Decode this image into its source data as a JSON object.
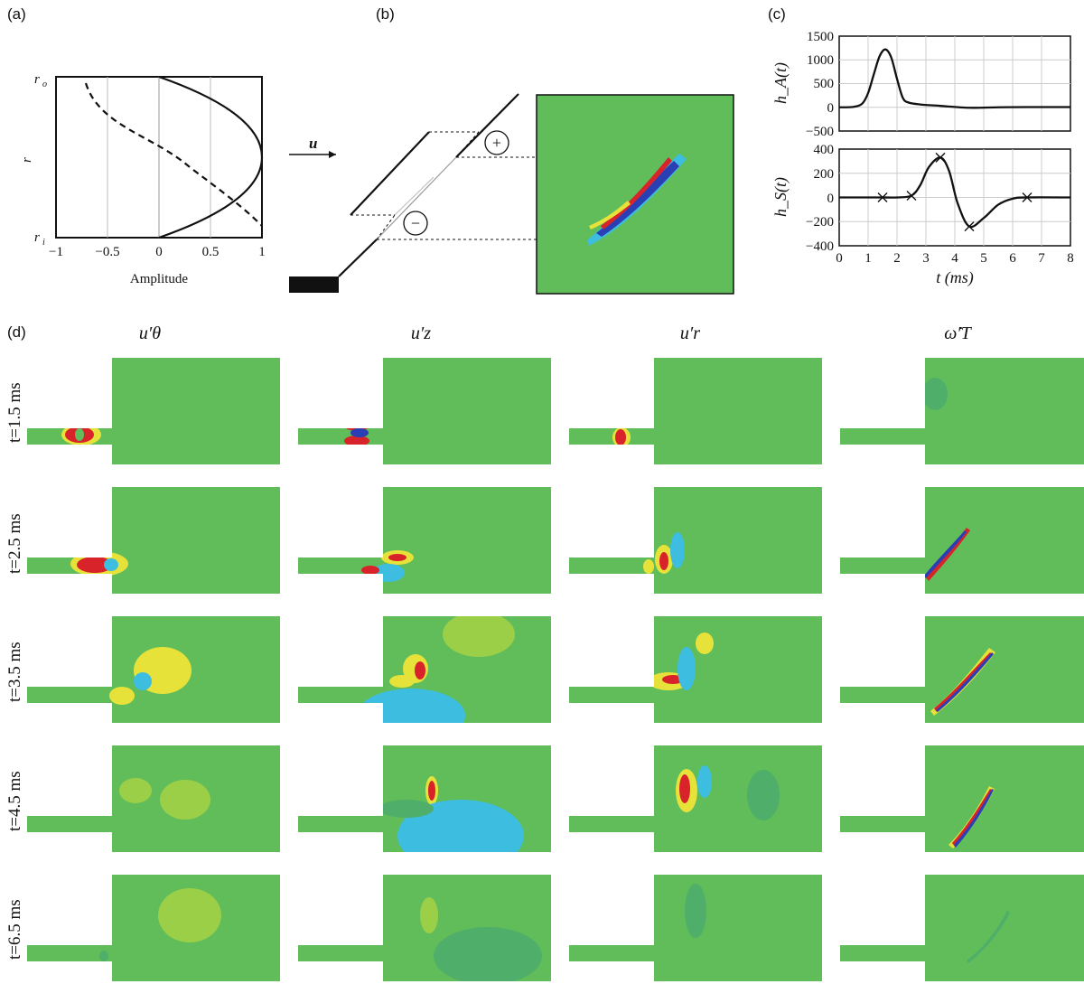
{
  "panels": {
    "a": {
      "label": "(a)",
      "ytop": "r",
      "ytop_sub": "o",
      "ybot": "r",
      "ybot_sub": "i",
      "ylabel": "r",
      "xticks": [
        "−1",
        "−0.5",
        "0",
        "0.5",
        "1"
      ],
      "xlabel": "Amplitude"
    },
    "b": {
      "label": "(b)",
      "velocity": "u",
      "plus": "+",
      "minus": "−"
    },
    "c": {
      "label": "(c)",
      "top_ylabel": "h_A(t)",
      "bottom_ylabel": "h_S(t)",
      "xlabel": "t (ms)",
      "top_yticks": [
        "1500",
        "1000",
        "500",
        "0",
        "−500"
      ],
      "bottom_yticks": [
        "400",
        "200",
        "0",
        "−200",
        "−400"
      ],
      "xticks": [
        "0",
        "1",
        "2",
        "3",
        "4",
        "5",
        "6",
        "7",
        "8"
      ]
    },
    "d": {
      "label": "(d)",
      "columns": [
        "u′θ",
        "u′z",
        "u′r",
        "ω̇′T"
      ],
      "rows": [
        "t=1.5 ms",
        "t=2.5 ms",
        "t=3.5 ms",
        "t=4.5 ms",
        "t=6.5 ms"
      ]
    }
  },
  "chart_data": [
    {
      "type": "line",
      "ylabel": "h_A(t)",
      "xlim": [
        0,
        8
      ],
      "ylim": [
        -500,
        1500
      ],
      "grid": true,
      "x": [
        0,
        0.5,
        0.8,
        1.0,
        1.2,
        1.4,
        1.6,
        1.8,
        2.0,
        2.2,
        2.4,
        2.8,
        3.5,
        4.5,
        5.5,
        6.5,
        8.0
      ],
      "y": [
        0,
        10,
        80,
        300,
        700,
        1080,
        1220,
        1050,
        600,
        200,
        100,
        60,
        30,
        -10,
        0,
        5,
        5
      ]
    },
    {
      "type": "line",
      "ylabel": "h_S(t)",
      "xlabel": "t (ms)",
      "xlim": [
        0,
        8
      ],
      "ylim": [
        -400,
        400
      ],
      "grid": true,
      "x": [
        0,
        1.0,
        1.5,
        2.0,
        2.5,
        2.8,
        3.1,
        3.5,
        3.8,
        4.1,
        4.5,
        5.0,
        5.5,
        6.0,
        6.5,
        8.0
      ],
      "y": [
        0,
        0,
        0,
        0,
        15,
        100,
        250,
        330,
        220,
        -50,
        -240,
        -170,
        -60,
        -10,
        0,
        0
      ],
      "markers": {
        "x": [
          1.5,
          2.5,
          3.5,
          4.5,
          6.5
        ],
        "y": [
          0,
          15,
          330,
          -240,
          0
        ]
      }
    }
  ]
}
